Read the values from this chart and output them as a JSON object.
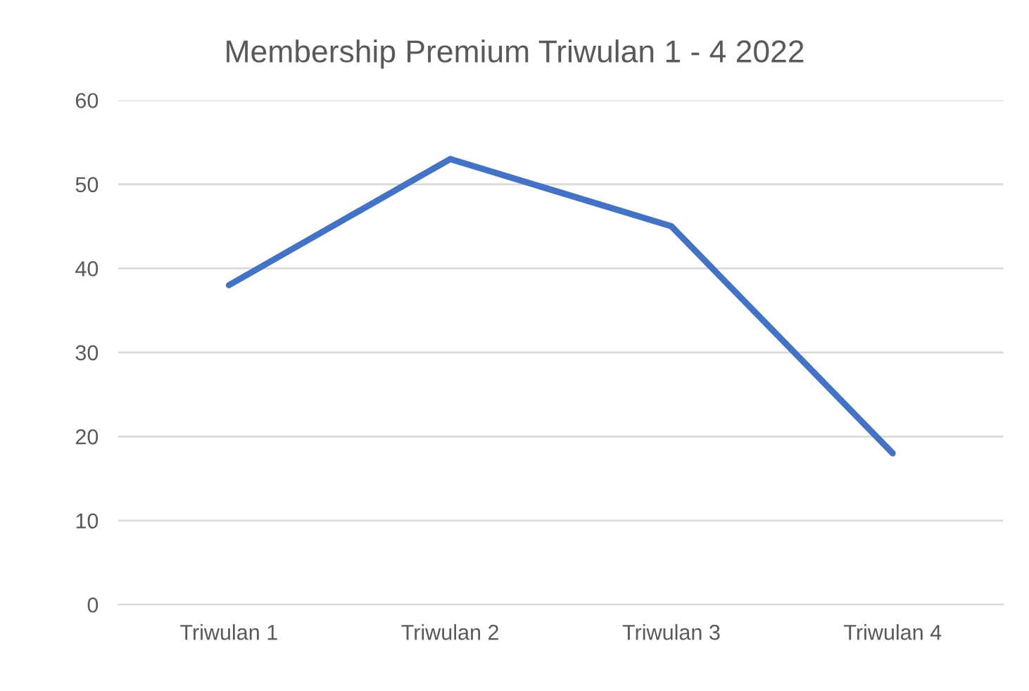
{
  "chart_data": {
    "type": "line",
    "title": "Membership Premium Triwulan 1 - 4 2022",
    "categories": [
      "Triwulan 1",
      "Triwulan 2",
      "Triwulan 3",
      "Triwulan 4"
    ],
    "values": [
      38,
      53,
      45,
      18
    ],
    "color": "#4472c4",
    "ylim": [
      0,
      60
    ],
    "yticks": [
      0,
      10,
      20,
      30,
      40,
      50,
      60
    ],
    "grid": "y",
    "marker": "none",
    "line_style": "solid"
  }
}
